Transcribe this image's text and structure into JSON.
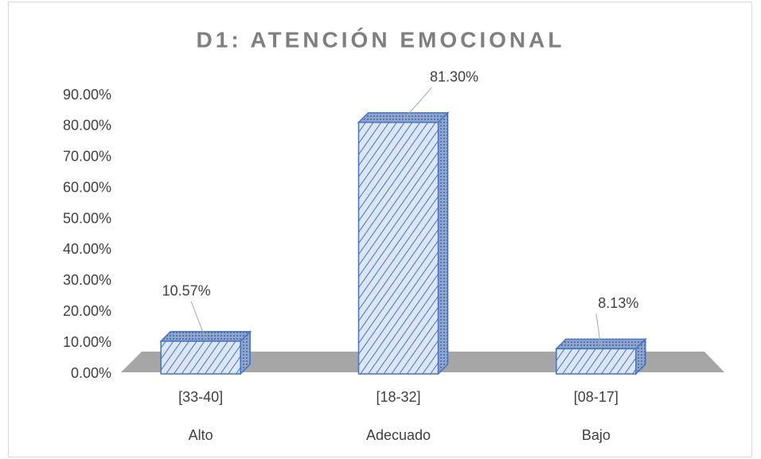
{
  "chart_data": {
    "type": "bar3d",
    "title": "D1: ATENCIÓN EMOCIONAL",
    "categories": [
      "[33-40]",
      "[18-32]",
      "[08-17]"
    ],
    "subcategories": [
      "Alto",
      "Adecuado",
      "Bajo"
    ],
    "values": [
      10.57,
      81.3,
      8.13
    ],
    "value_labels": [
      "10.57%",
      "81.30%",
      "8.13%"
    ],
    "color": "#4472c4",
    "ylim": [
      0,
      90
    ],
    "yticks": [
      {
        "value": 0,
        "label": "0.00%"
      },
      {
        "value": 10,
        "label": "10.00%"
      },
      {
        "value": 20,
        "label": "20.00%"
      },
      {
        "value": 30,
        "label": "30.00%"
      },
      {
        "value": 40,
        "label": "40.00%"
      },
      {
        "value": 50,
        "label": "50.00%"
      },
      {
        "value": 60,
        "label": "60.00%"
      },
      {
        "value": 70,
        "label": "70.00%"
      },
      {
        "value": 80,
        "label": "80.00%"
      },
      {
        "value": 90,
        "label": "90.00%"
      }
    ],
    "grid": false
  }
}
